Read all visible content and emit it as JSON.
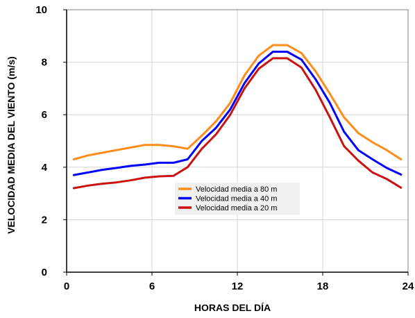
{
  "chart_data": {
    "type": "line",
    "xlabel": "HORAS DEL DÍA",
    "ylabel": "VELOCIDAD MEDIA DEL VIENTO (m/s)",
    "xlim": [
      0,
      24
    ],
    "ylim": [
      0,
      10
    ],
    "xticks": [
      0,
      6,
      12,
      18,
      24
    ],
    "yticks": [
      0,
      2,
      4,
      6,
      8,
      10
    ],
    "grid": true,
    "legend_position": "center",
    "x": [
      0.5,
      1.5,
      2.5,
      3.5,
      4.5,
      5.5,
      6.5,
      7.5,
      8.5,
      9.5,
      10.5,
      11.5,
      12.5,
      13.5,
      14.5,
      15.5,
      16.5,
      17.5,
      18.5,
      19.5,
      20.5,
      21.5,
      22.5,
      23.5
    ],
    "series": [
      {
        "name": "Velocidad media a 80 m",
        "color": "#ff8c1a",
        "values": [
          4.3,
          4.45,
          4.55,
          4.65,
          4.75,
          4.85,
          4.85,
          4.8,
          4.7,
          5.2,
          5.75,
          6.45,
          7.5,
          8.25,
          8.65,
          8.65,
          8.35,
          7.65,
          6.8,
          5.9,
          5.3,
          4.95,
          4.65,
          4.3
        ],
        "visible_values": [
          4.3,
          4.45,
          4.55,
          4.6,
          4.7,
          4.8,
          4.85,
          4.85,
          4.8,
          4.7,
          5.2,
          5.7,
          6.4,
          7.4,
          8.2,
          8.65,
          8.65,
          8.35,
          7.7,
          6.85,
          5.95,
          5.3,
          4.95,
          4.7,
          4.3
        ]
      },
      {
        "name": "Velocidad media a 40 m",
        "color": "#0000ff",
        "values": [
          3.7,
          3.8,
          3.9,
          3.97,
          4.05,
          4.1,
          4.17,
          4.17,
          4.3,
          5.0,
          5.5,
          6.2,
          7.2,
          7.95,
          8.4,
          8.4,
          8.1,
          7.35,
          6.45,
          5.35,
          4.65,
          4.3,
          3.97,
          3.72
        ],
        "visible_values": [
          3.7,
          3.8,
          3.9,
          3.95,
          4.0,
          4.08,
          4.15,
          4.18,
          4.18,
          4.35,
          4.95,
          5.45,
          6.2,
          7.2,
          7.95,
          8.4,
          8.4,
          8.1,
          7.35,
          6.4,
          5.35,
          4.65,
          4.3,
          4.0,
          3.72
        ]
      },
      {
        "name": "Velocidad media a 20 m",
        "color": "#cc1111",
        "values": [
          3.2,
          3.3,
          3.37,
          3.42,
          3.5,
          3.6,
          3.65,
          3.67,
          4.0,
          4.7,
          5.25,
          6.0,
          7.0,
          7.75,
          8.15,
          8.15,
          7.8,
          6.95,
          5.9,
          4.8,
          4.25,
          3.8,
          3.55,
          3.22
        ]
      }
    ]
  }
}
